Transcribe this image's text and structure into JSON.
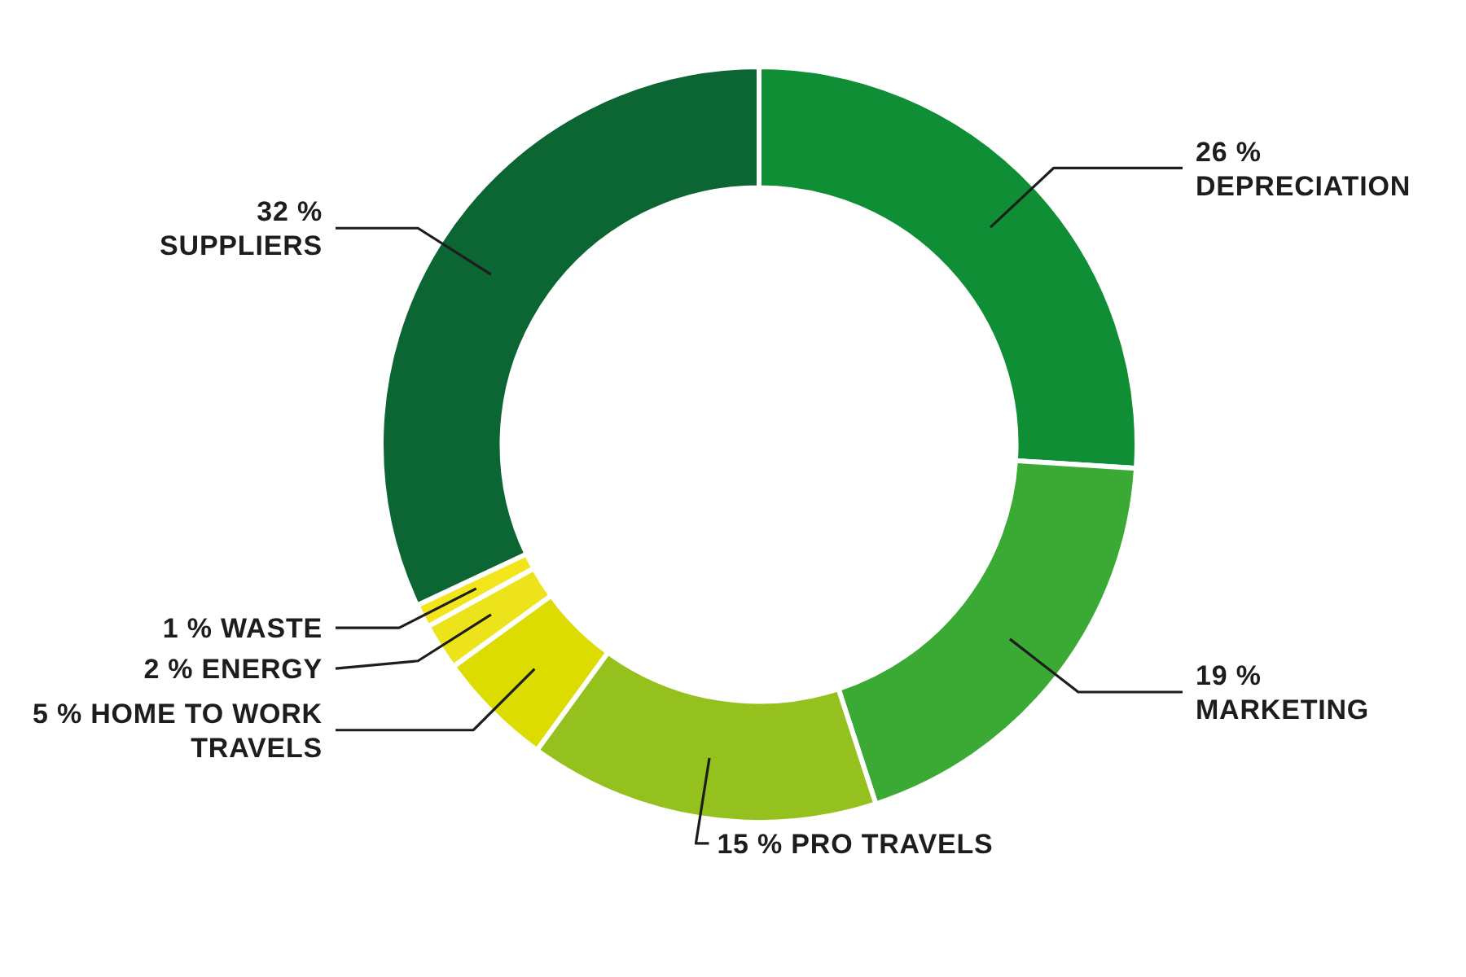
{
  "chart_data": {
    "type": "donut",
    "categories": [
      "DEPRECIATION",
      "MARKETING",
      "PRO TRAVELS",
      "HOME TO WORK TRAVELS",
      "ENERGY",
      "WASTE",
      "SUPPLIERS"
    ],
    "values": [
      26,
      19,
      15,
      5,
      2,
      1,
      32
    ],
    "value_labels": [
      "26 %",
      "19 %",
      "15 %",
      "5 %",
      "2 %",
      "1 %",
      "32 %"
    ],
    "colors": [
      "#0f8e36",
      "#3aaa35",
      "#95c11f",
      "#dcdc00",
      "#ede31a",
      "#f3e51c",
      "#0b6634"
    ]
  }
}
